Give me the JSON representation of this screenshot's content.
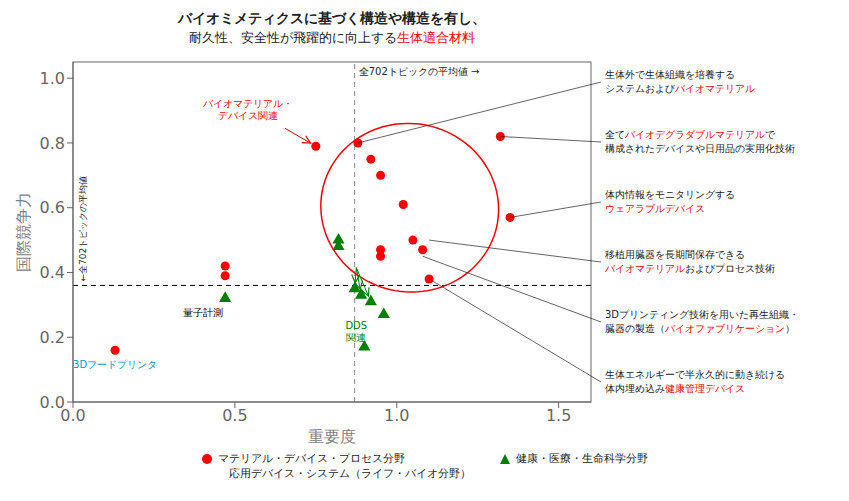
{
  "chart_data": {
    "type": "scatter",
    "title": "バイオミメティクスに基づく構造や構造を有し、",
    "subtitle": [
      {
        "text": "耐久性、安全性が飛躍的に向上する"
      },
      {
        "text": "生体適合材料",
        "color": "red"
      }
    ],
    "xlabel": "重要度",
    "ylabel": "国際競争力",
    "xlim": [
      0.0,
      1.6
    ],
    "ylim": [
      0.0,
      1.05
    ],
    "xticks": [
      {
        "value": 0,
        "label": "0.0"
      },
      0.5,
      {
        "value": 1,
        "label": "1.0"
      },
      1.5
    ],
    "yticks": [
      {
        "value": 0,
        "label": "0.0"
      },
      0.2,
      0.4,
      0.6,
      0.8,
      {
        "value": 1,
        "label": "1.0"
      }
    ],
    "series": [
      {
        "name": "マテリアル・デバイス・プロセス分野\n　応用デバイス・システム（ライフ・バイオ分野）",
        "color": "red",
        "marker": "circle",
        "values": [
          [
            0.13,
            0.16
          ],
          [
            0.47,
            0.42
          ],
          [
            0.47,
            0.39
          ],
          [
            0.75,
            0.79
          ],
          [
            0.88,
            0.8
          ],
          [
            0.92,
            0.75
          ],
          [
            0.95,
            0.7
          ],
          [
            0.95,
            0.47
          ],
          [
            0.95,
            0.45
          ],
          [
            1.02,
            0.61
          ],
          [
            1.05,
            0.5
          ],
          [
            1.08,
            0.47
          ],
          [
            1.1,
            0.38
          ],
          [
            1.32,
            0.82
          ],
          [
            1.35,
            0.57
          ]
        ]
      },
      {
        "name": "健康・医療・生命科学分野",
        "color": "green",
        "marker": "triangle",
        "values": [
          [
            0.47,
            0.32
          ],
          [
            0.82,
            0.5
          ],
          [
            0.82,
            0.48
          ],
          [
            0.87,
            0.35
          ],
          [
            0.89,
            0.33
          ],
          [
            0.92,
            0.31
          ],
          [
            0.96,
            0.27
          ],
          [
            0.9,
            0.17
          ]
        ]
      }
    ],
    "reference_lines": [
      {
        "axis": "y",
        "value": 0.36,
        "label": "←全702トピックの平均値",
        "color": "black"
      },
      {
        "axis": "x",
        "value": 0.87,
        "label": "全702トピックの平均値 →",
        "color": "#888888"
      }
    ],
    "ellipse": {
      "center": [
        1.04,
        0.6
      ],
      "width": 0.55,
      "height": 0.52,
      "angle": -10,
      "color": "red"
    },
    "annotations": [
      {
        "text": "DDS\n関連",
        "x": 0.875,
        "y": 0.255,
        "color": "green",
        "arrows": [
          {
            "from": [
              0.875,
              0.415
            ],
            "to": [
              0.87,
              0.35
            ]
          },
          {
            "from": [
              0.875,
              0.415
            ],
            "to": [
              0.89,
              0.33
            ]
          },
          {
            "from": [
              0.875,
              0.415
            ],
            "to": [
              0.92,
              0.31
            ]
          }
        ]
      },
      {
        "text": "量子計測",
        "x": 0.4,
        "y": 0.295,
        "color": "black"
      },
      {
        "text": "3Dフードプリンタ",
        "x": 0.13,
        "y": 0.135,
        "color": "#0099CC"
      },
      {
        "text": "バイオマテリアル・\nデバイス関連",
        "x": 0.54,
        "y": 0.865,
        "color": "red",
        "arrows": [
          {
            "from": [
              0.655,
              0.845
            ],
            "to": [
              0.75,
              0.79
            ]
          }
        ]
      },
      {
        "point": [
          0.88,
          0.8
        ],
        "lines": [
          [
            {
              "text": "生体外で生体組織を培養する"
            }
          ],
          [
            {
              "text": "システムおよび"
            },
            {
              "text": "バイオマテリアル",
              "color": "red"
            }
          ]
        ]
      },
      {
        "point": [
          1.32,
          0.82
        ],
        "lines": [
          [
            {
              "text": "全て"
            },
            {
              "text": "バイオデグラダブルマテリアル",
              "color": "red"
            },
            {
              "text": "で"
            }
          ],
          [
            {
              "text": "構成されたデバイスや日用品の実用化技術"
            }
          ]
        ]
      },
      {
        "point": [
          1.35,
          0.57
        ],
        "lines": [
          [
            {
              "text": "体内情報をモニタリングする"
            }
          ],
          [
            {
              "text": "ウェアラブルデバイス",
              "color": "red"
            }
          ]
        ]
      },
      {
        "point": [
          1.1,
          0.5
        ],
        "lines": [
          [
            {
              "text": "移植用臓器を長期間保存できる"
            }
          ],
          [
            {
              "text": "バイオマテリアル",
              "color": "red"
            },
            {
              "text": "およびプロセス技術"
            }
          ]
        ]
      },
      {
        "point": [
          1.08,
          0.45
        ],
        "lines": [
          [
            {
              "text": "3Dプリンティング技術を用いた再生組織・"
            }
          ],
          [
            {
              "text": "臓器の製造（"
            },
            {
              "text": "バイオファブリケーション",
              "color": "red"
            },
            {
              "text": "）"
            }
          ]
        ]
      },
      {
        "point": [
          1.1,
          0.38
        ],
        "lines": [
          [
            {
              "text": "生体エネルギーで半永久的に動き続ける"
            }
          ],
          [
            {
              "text": "体内埋め込み"
            },
            {
              "text": "健康管理デバイス",
              "color": "red"
            }
          ]
        ]
      }
    ]
  }
}
